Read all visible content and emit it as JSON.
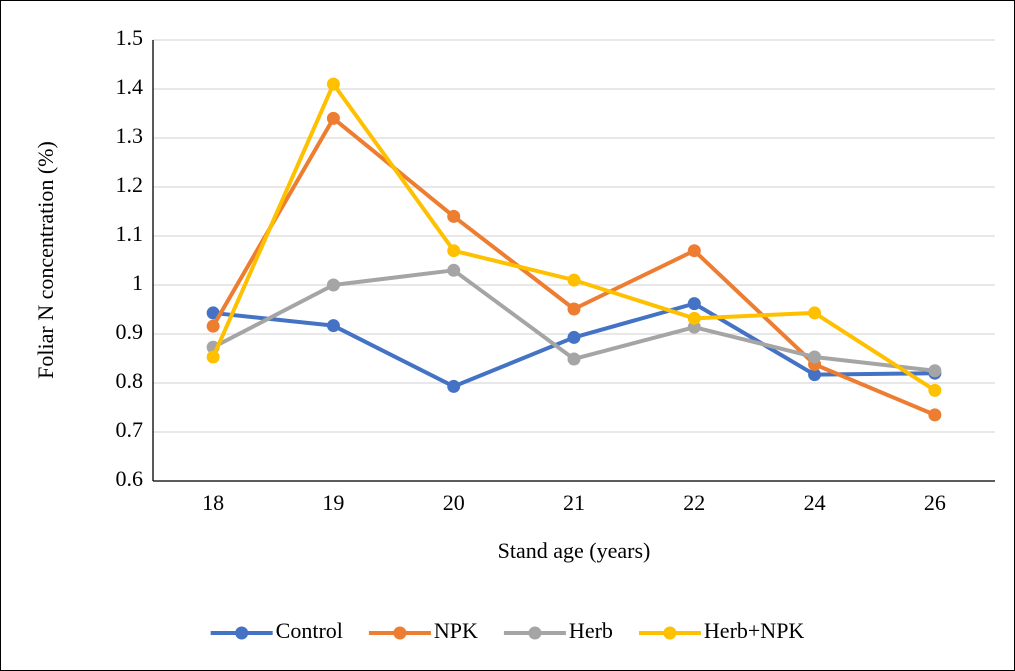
{
  "chart_data": {
    "type": "line",
    "categories": [
      "18",
      "19",
      "20",
      "21",
      "22",
      "24",
      "26"
    ],
    "series": [
      {
        "name": "Control",
        "color": "#4472c4",
        "values": [
          0.943,
          0.917,
          0.793,
          0.893,
          0.962,
          0.817,
          0.82
        ]
      },
      {
        "name": "NPK",
        "color": "#ed7d31",
        "values": [
          0.916,
          1.34,
          1.14,
          0.951,
          1.07,
          0.838,
          0.735
        ]
      },
      {
        "name": "Herb",
        "color": "#a5a5a5",
        "values": [
          0.873,
          1.0,
          1.03,
          0.849,
          0.914,
          0.853,
          0.825
        ]
      },
      {
        "name": "Herb+NPK",
        "color": "#ffc000",
        "values": [
          0.853,
          1.41,
          1.07,
          1.01,
          0.932,
          0.943,
          0.785
        ]
      }
    ],
    "xlabel": "Stand age (years)",
    "ylabel": "Foliar N concentration (%)",
    "ylim": [
      0.6,
      1.5
    ],
    "yticks": [
      0.6,
      0.7,
      0.8,
      0.9,
      1,
      1.1,
      1.2,
      1.3,
      1.4,
      1.5
    ],
    "grid": true,
    "legend": "bottom"
  }
}
